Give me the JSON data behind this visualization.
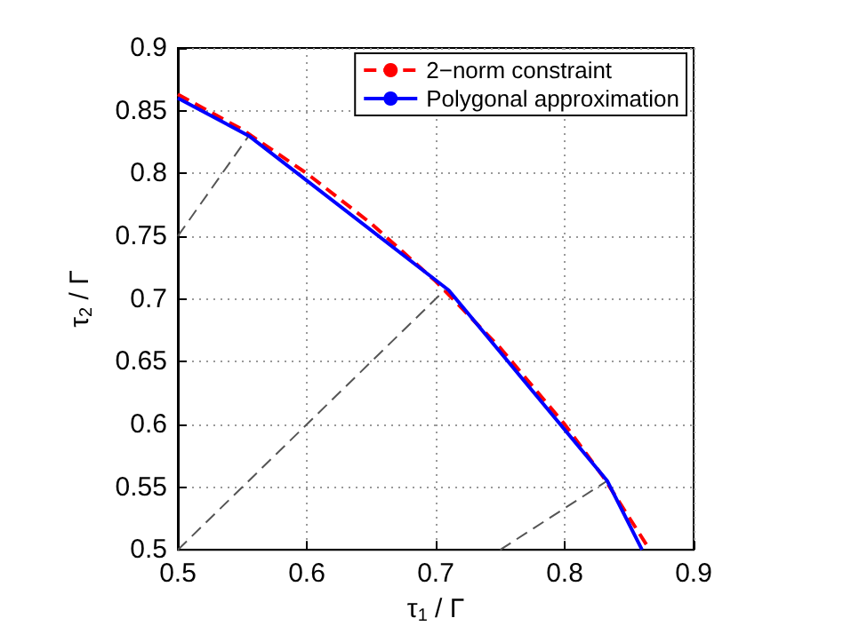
{
  "chart_data": {
    "type": "line",
    "xlabel": "τ$_{1}$ / Γ",
    "ylabel": "τ$_{2}$ / Γ",
    "xlim": [
      0.5,
      0.9
    ],
    "xticks": [
      0.5,
      0.6,
      0.7,
      0.8,
      0.9
    ],
    "ylim": [
      0.5,
      0.9
    ],
    "yticks": [
      0.5,
      0.55,
      0.6,
      0.65,
      0.7,
      0.75,
      0.8,
      0.85,
      0.9
    ],
    "grid": true,
    "legend": "top right",
    "marker": "none",
    "series": [
      {
        "name": "2−norm constraint",
        "color": "#ff0000",
        "line_style": "dashed",
        "x": [
          0.5,
          0.55,
          0.6,
          0.65,
          0.7,
          0.75,
          0.8,
          0.83,
          0.866
        ],
        "values": [
          0.863,
          0.835,
          0.8,
          0.76,
          0.714,
          0.661,
          0.6,
          0.558,
          0.5
        ]
      },
      {
        "name": "Polygonal approximation",
        "color": "#0000ff",
        "line_style": "solid",
        "x": [
          0.5,
          0.555,
          0.71,
          0.833,
          0.86
        ],
        "values": [
          0.86,
          0.83,
          0.707,
          0.555,
          0.5
        ]
      },
      {
        "color": "#555555",
        "line_style": "dashed",
        "x": [
          0.5,
          0.555
        ],
        "values": [
          0.75,
          0.83
        ]
      },
      {
        "color": "#555555",
        "line_style": "dashed",
        "x": [
          0.5,
          0.707
        ],
        "values": [
          0.5,
          0.707
        ]
      },
      {
        "color": "#555555",
        "line_style": "dashed",
        "x": [
          0.75,
          0.833
        ],
        "values": [
          0.5,
          0.555
        ]
      }
    ]
  }
}
